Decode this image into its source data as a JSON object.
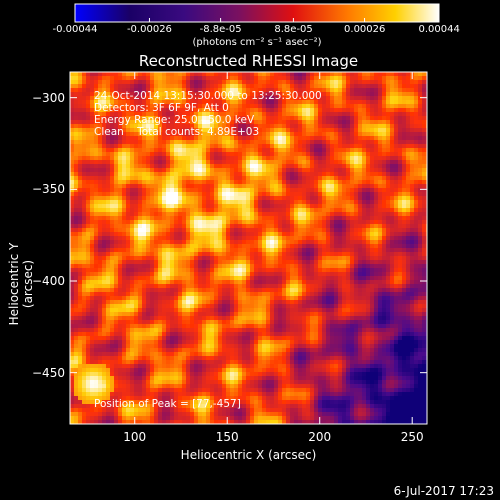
{
  "chart_data": {
    "type": "heatmap",
    "title": "Reconstructed RHESSI Image",
    "xlabel": "Heliocentric X (arcsec)",
    "ylabel": "Heliocentric Y (arcsec)",
    "xlim": [
      65,
      258
    ],
    "ylim": [
      -478,
      -286
    ],
    "x_ticks": [
      100,
      150,
      200,
      250
    ],
    "y_ticks": [
      -300,
      -350,
      -400,
      -450
    ],
    "colormap": "hot",
    "colorbar": {
      "units": "(photons cm⁻² s⁻¹ asec⁻²)",
      "range": [
        -0.00044,
        0.00044
      ],
      "tick_labels": [
        "-0.00044",
        "-0.00026",
        "-8.8e-05",
        "8.8e-05",
        "0.00026",
        "0.00044"
      ]
    },
    "annotations": {
      "time_range": "24-Oct-2014 13:15:30.000 to 13:25:30.000",
      "detectors": "Detectors: 3F 6F 9F, Att 0",
      "energy_range": "Energy Range: 25.0 - 50.0 keV",
      "clean_counts": "Clean    Total counts: 4.89E+03",
      "peak": "Position of Peak = [77,-457]"
    },
    "peak_position": [
      77,
      -457
    ]
  },
  "footer": {
    "date": "6-Jul-2017 17:23"
  }
}
